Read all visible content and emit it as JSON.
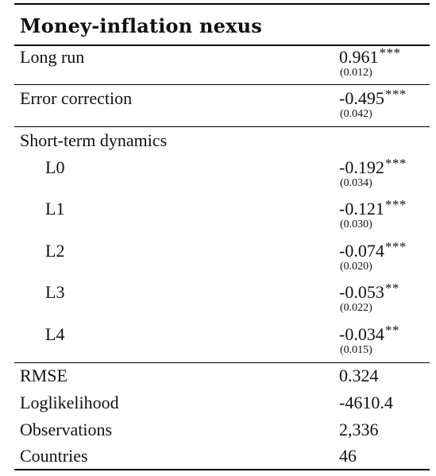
{
  "table": {
    "title": "Money-inflation nexus",
    "long_run": {
      "label": "Long run",
      "coef": "0.961",
      "stars": "***",
      "se": "(0.012)"
    },
    "error_correction": {
      "label": "Error correction",
      "coef": "-0.495",
      "stars": "***",
      "se": "(0.042)"
    },
    "short_term": {
      "label": "Short-term dynamics",
      "rows": [
        {
          "label": "L0",
          "coef": "-0.192",
          "stars": "***",
          "se": "(0.034)"
        },
        {
          "label": "L1",
          "coef": "-0.121",
          "stars": "***",
          "se": "(0.030)"
        },
        {
          "label": "L2",
          "coef": "-0.074",
          "stars": "***",
          "se": "(0.020)"
        },
        {
          "label": "L3",
          "coef": "-0.053",
          "stars": "**",
          "se": "(0.022)"
        },
        {
          "label": "L4",
          "coef": "-0.034",
          "stars": "**",
          "se": "(0.015)"
        }
      ]
    },
    "stats": [
      {
        "label": "RMSE",
        "value": "0.324"
      },
      {
        "label": "Loglikelihood",
        "value": "-4610.4"
      },
      {
        "label": "Observations",
        "value": "2,336"
      },
      {
        "label": "Countries",
        "value": "46"
      }
    ]
  }
}
